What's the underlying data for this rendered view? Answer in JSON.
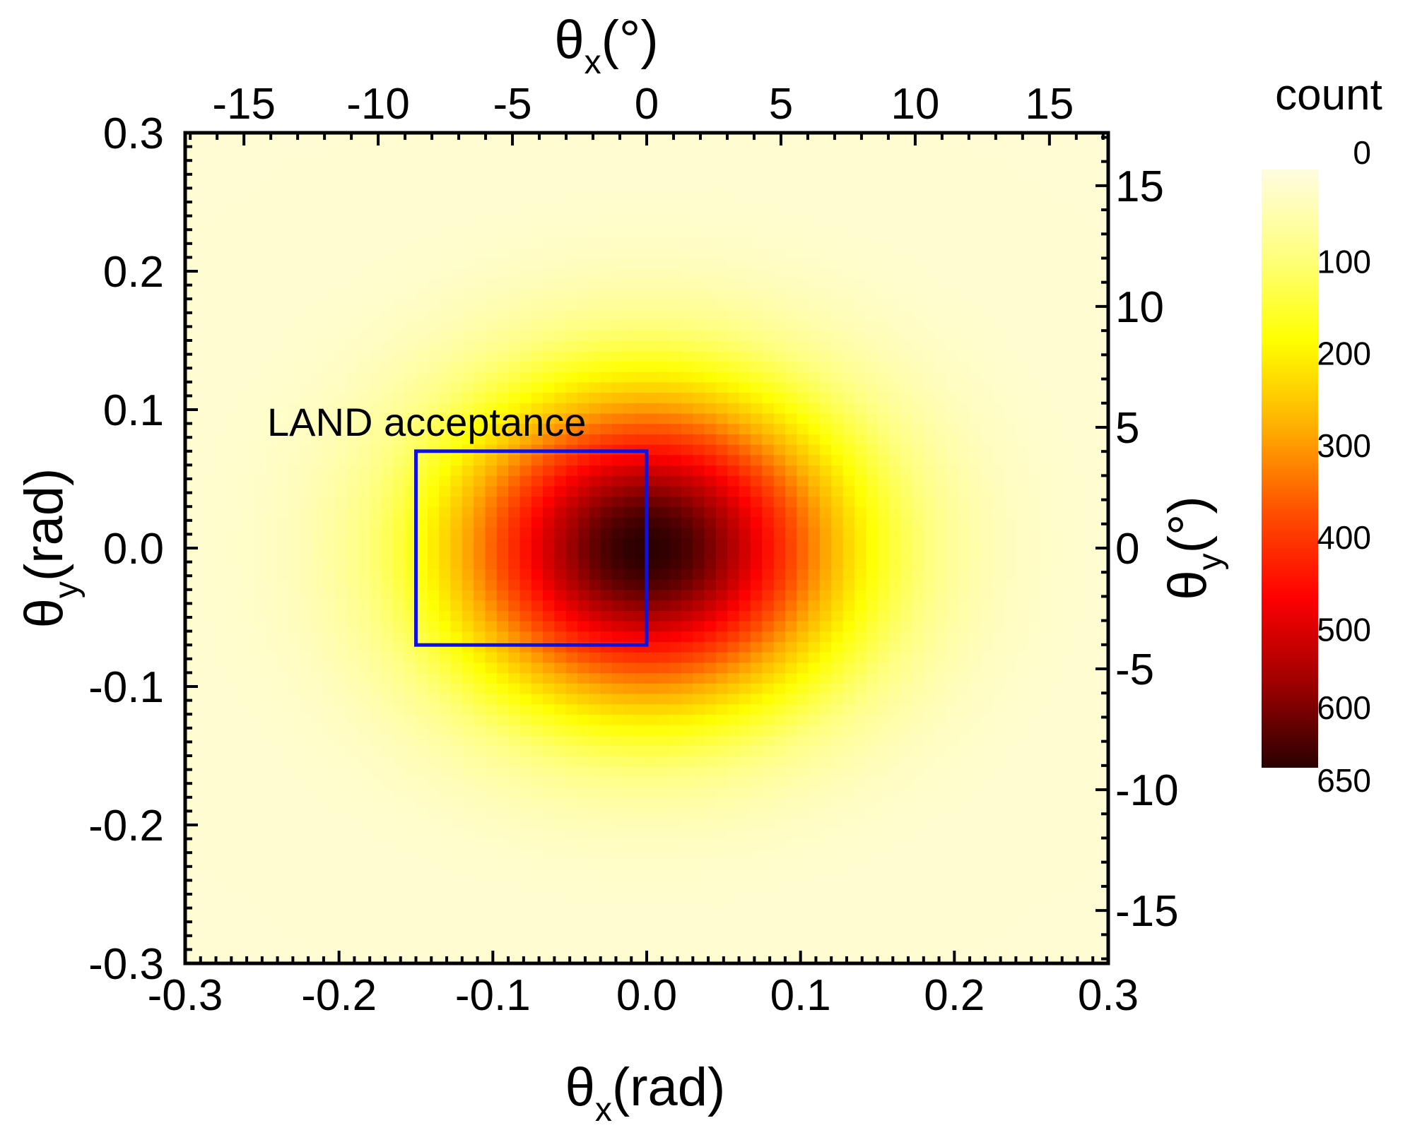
{
  "chart_data": {
    "type": "heatmap",
    "description_axes": {
      "bottom": {
        "label_main": "θ",
        "label_sub": "x",
        "label_unit": "(rad)",
        "range": [
          -0.3,
          0.3
        ],
        "ticks": [
          -0.3,
          -0.2,
          -0.1,
          0.0,
          0.1,
          0.2,
          0.3
        ],
        "tick_labels": [
          "-0.3",
          "-0.2",
          "-0.1",
          "0.0",
          "0.1",
          "0.2",
          "0.3"
        ]
      },
      "left": {
        "label_main": "θ",
        "label_sub": "y",
        "label_unit": "(rad)",
        "range": [
          -0.3,
          0.3
        ],
        "ticks": [
          -0.3,
          -0.2,
          -0.1,
          0.0,
          0.1,
          0.2,
          0.3
        ],
        "tick_labels": [
          "-0.3",
          "-0.2",
          "-0.1",
          "0.0",
          "0.1",
          "0.2",
          "0.3"
        ]
      },
      "top": {
        "label_main": "θ",
        "label_sub": "x",
        "label_unit": "(°)",
        "ticks_deg": [
          -15,
          -10,
          -5,
          0,
          5,
          10,
          15
        ],
        "tick_labels": [
          "-15",
          "-10",
          "-5",
          "0",
          "5",
          "10",
          "15"
        ]
      },
      "right": {
        "label_main": "θ",
        "label_sub": "y",
        "label_unit": "(°)",
        "ticks_deg": [
          15,
          10,
          5,
          0,
          -5,
          -10,
          -15
        ],
        "tick_labels": [
          "15",
          "10",
          "5",
          "0",
          "-5",
          "-10",
          "-15"
        ]
      }
    },
    "colorbar": {
      "title": "count",
      "min": 0,
      "max": 650,
      "ticks": [
        0,
        100,
        200,
        300,
        400,
        500,
        600,
        650
      ],
      "tick_labels": [
        "0",
        "100",
        "200",
        "300",
        "400",
        "500",
        "600",
        "650"
      ],
      "colors": [
        "#fffce0",
        "#ffff80",
        "#ffff00",
        "#ffb000",
        "#ff5000",
        "#ff0000",
        "#a00000",
        "#2a0000"
      ]
    },
    "distribution": {
      "peak_count": 650,
      "peak_x_rad": 0.0,
      "peak_y_rad": 0.0,
      "sigma_x_rad": 0.09,
      "sigma_y_rad": 0.08
    },
    "acceptance_box": {
      "label": "LAND acceptance",
      "x_range": [
        -0.15,
        0.0
      ],
      "y_range": [
        -0.07,
        0.07
      ],
      "color": "#1010e0"
    }
  }
}
